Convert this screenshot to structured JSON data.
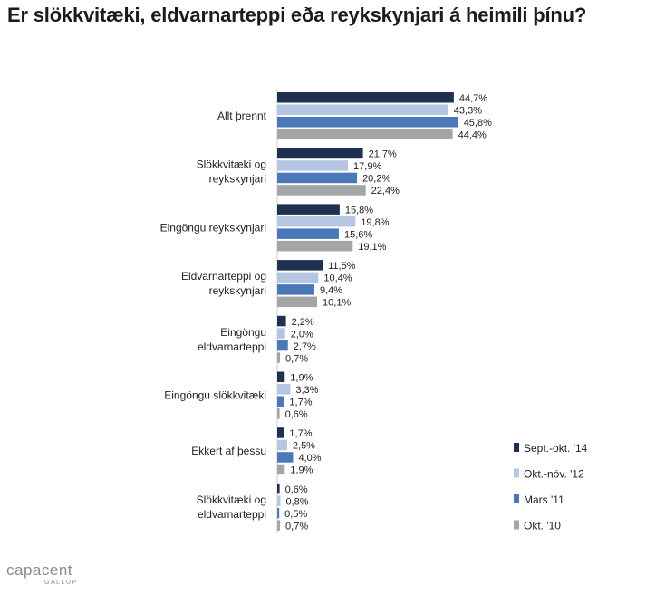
{
  "title": "Er slökkvitæki, eldvarnarteppi eða reykskynjari á heimili þínu?",
  "logo": {
    "main": "capacent",
    "sub": "GALLUP"
  },
  "chart_data": {
    "type": "bar",
    "orientation": "horizontal",
    "title": "Er slökkvitæki, eldvarnarteppi eða reykskynjari á heimili þínu?",
    "categories": [
      [
        "Allt þrennt"
      ],
      [
        "Slökkvitæki og",
        "reykskynjari"
      ],
      [
        "Eingöngu reykskynjari"
      ],
      [
        "Eldvarnarteppi og",
        "reykskynjari"
      ],
      [
        "Eingöngu",
        "eldvarnarteppi"
      ],
      [
        "Eingöngu slökkvitæki"
      ],
      [
        "Ekkert af þessu"
      ],
      [
        "Slökkvitæki og",
        "eldvarnarteppi"
      ]
    ],
    "series": [
      {
        "name": "Sept.-okt. '14",
        "color": "#1f3150",
        "values": [
          44.7,
          21.7,
          15.8,
          11.5,
          2.2,
          1.9,
          1.7,
          0.6
        ],
        "labels": [
          "44,7%",
          "21,7%",
          "15,8%",
          "11,5%",
          "2,2%",
          "1,9%",
          "1,7%",
          "0,6%"
        ]
      },
      {
        "name": "Okt.-nóv. '12",
        "color": "#b4c6e2",
        "values": [
          43.3,
          17.9,
          19.8,
          10.4,
          2.0,
          3.3,
          2.5,
          0.8
        ],
        "labels": [
          "43,3%",
          "17,9%",
          "19,8%",
          "10,4%",
          "2,0%",
          "3,3%",
          "2,5%",
          "0,8%"
        ]
      },
      {
        "name": "Mars '11",
        "color": "#4a78b8",
        "values": [
          45.8,
          20.2,
          15.6,
          9.4,
          2.7,
          1.7,
          4.0,
          0.5
        ],
        "labels": [
          "45,8%",
          "20,2%",
          "15,6%",
          "9,4%",
          "2,7%",
          "1,7%",
          "4,0%",
          "0,5%"
        ]
      },
      {
        "name": "Okt. '10",
        "color": "#a5a5a5",
        "values": [
          44.4,
          22.4,
          19.1,
          10.1,
          0.7,
          0.6,
          1.9,
          0.7
        ],
        "labels": [
          "44,4%",
          "22,4%",
          "19,1%",
          "10,1%",
          "0,7%",
          "0,6%",
          "1,9%",
          "0,7%"
        ]
      }
    ],
    "xlim": [
      0,
      50
    ],
    "grid": false,
    "legend_position": "bottom-right"
  }
}
